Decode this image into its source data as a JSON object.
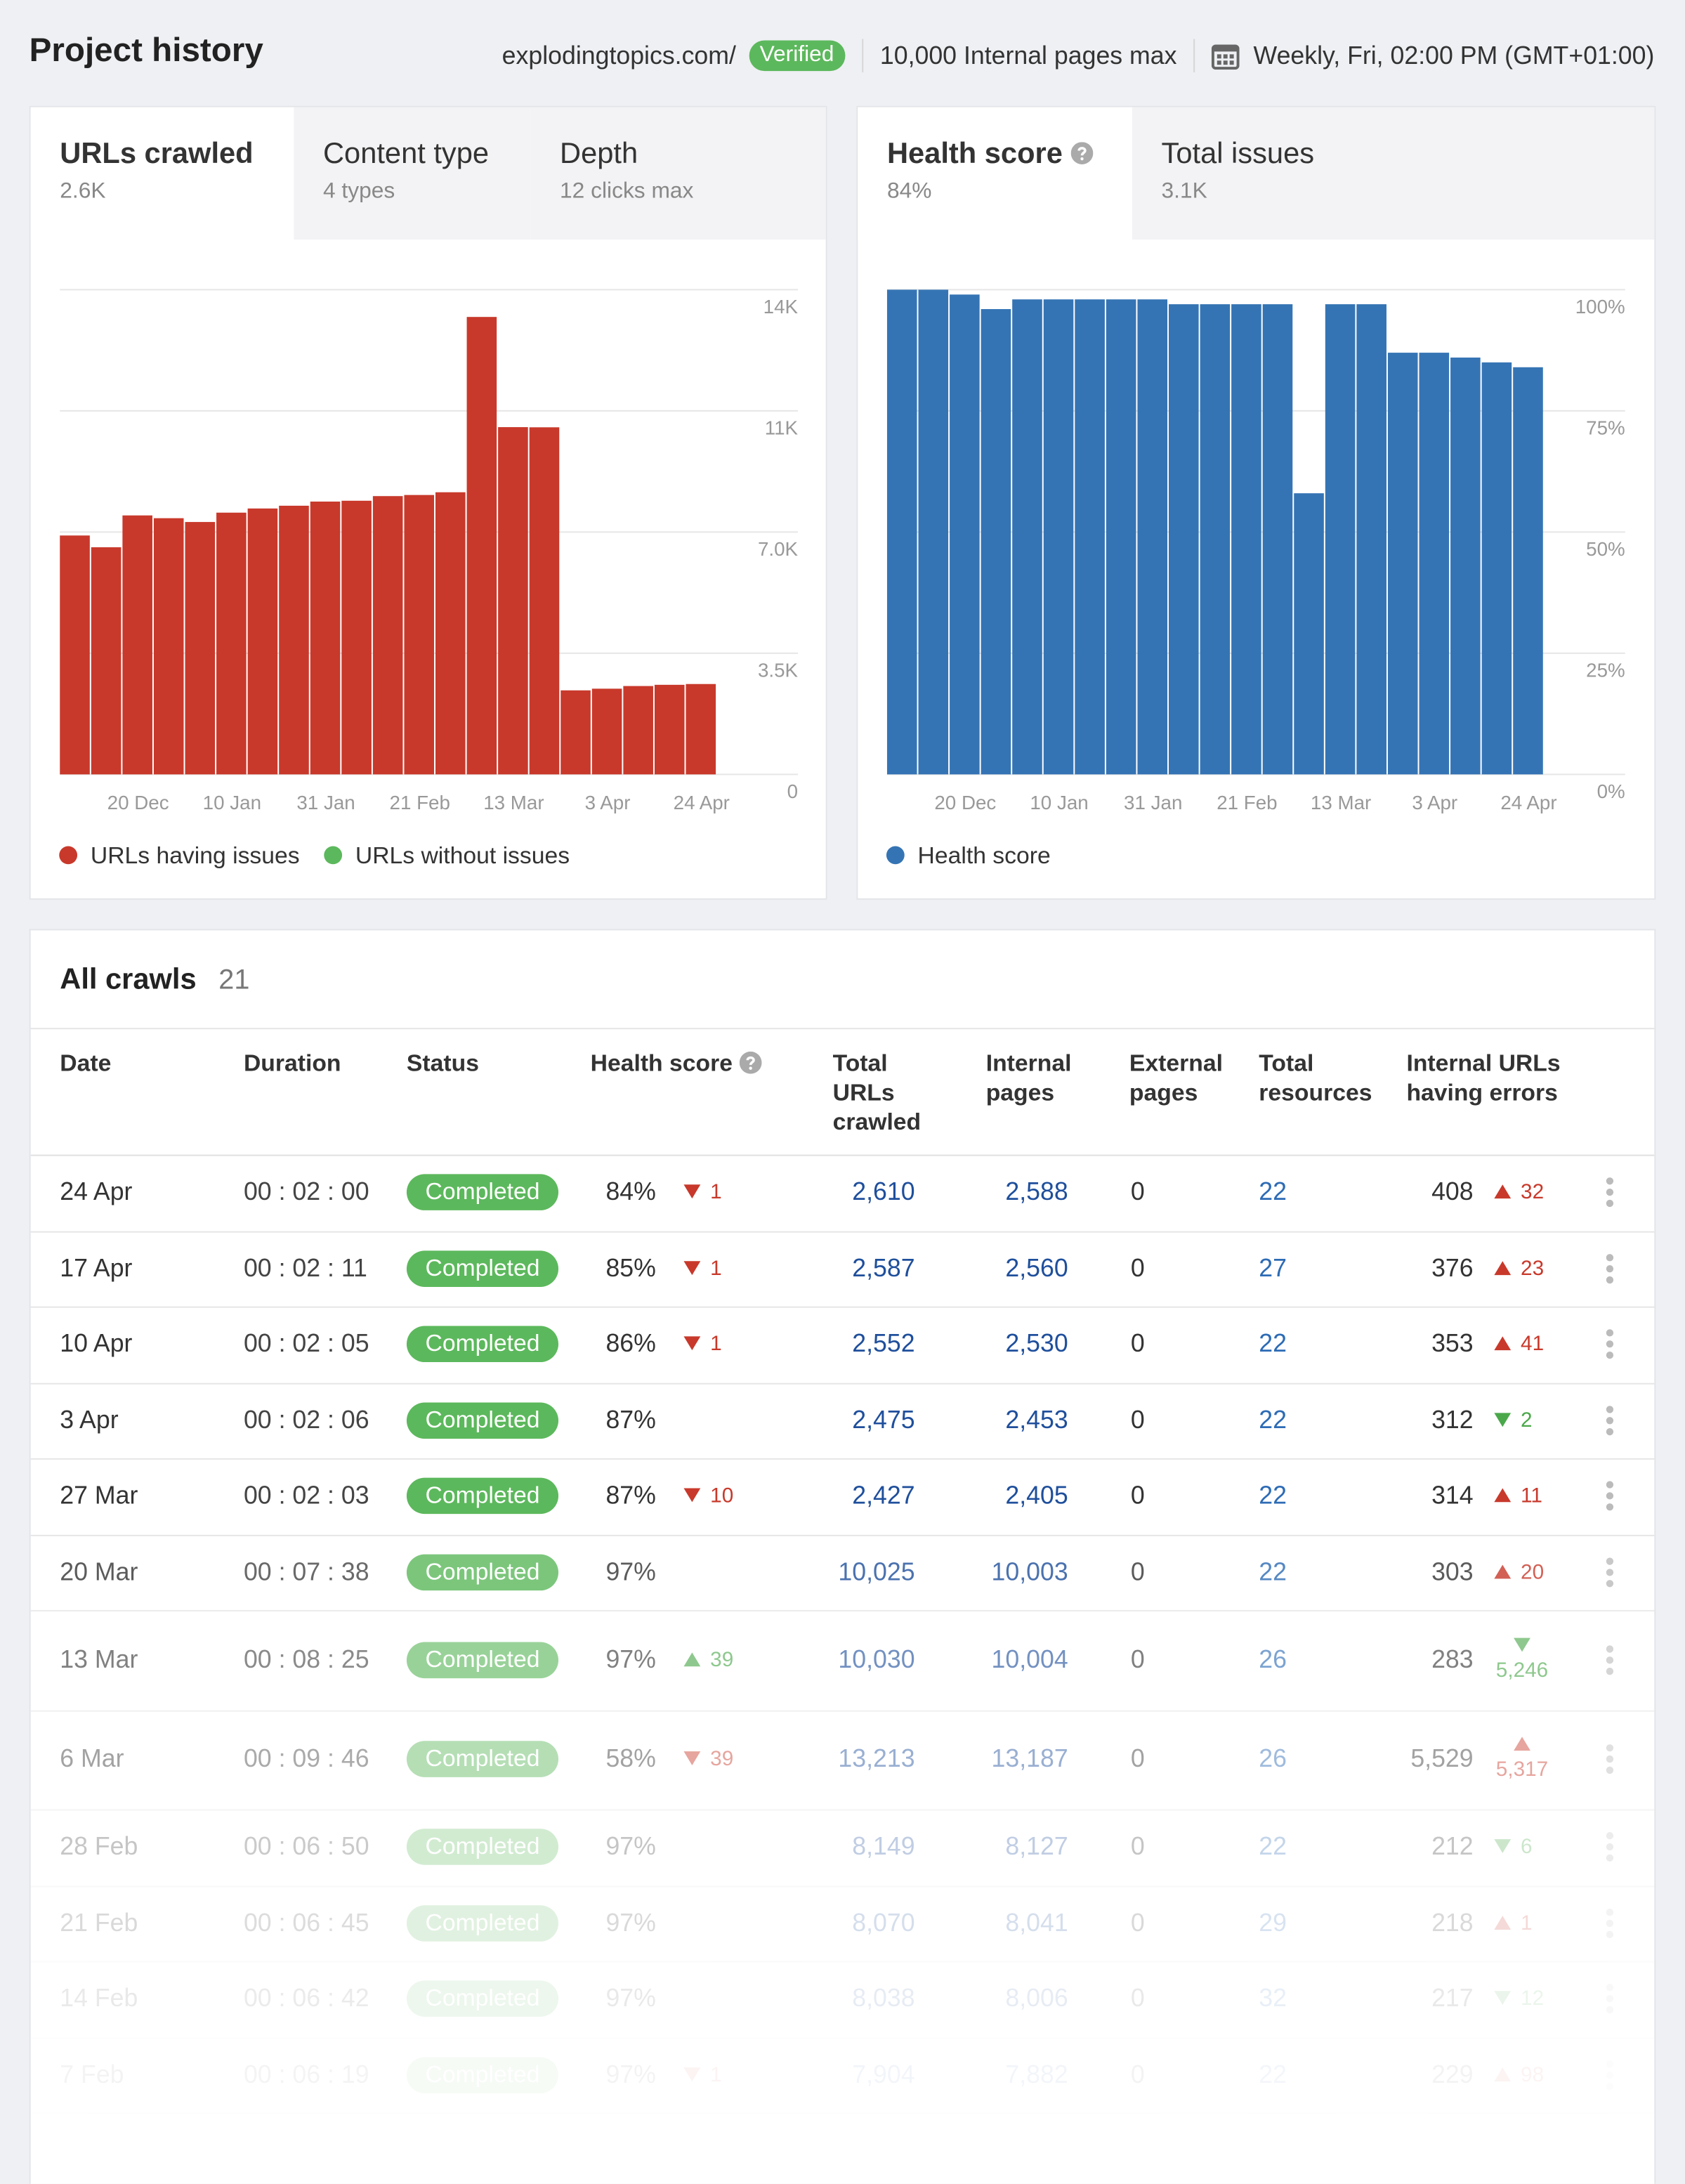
{
  "header": {
    "title": "Project history",
    "domain": "explodingtopics.com/",
    "badge": "Verified",
    "pages_limit": "10,000 Internal pages max",
    "schedule": "Weekly, Fri, 02:00 PM (GMT+01:00)"
  },
  "panels": [
    {
      "tabs": [
        {
          "label": "URLs crawled",
          "value": "2.6K"
        },
        {
          "label": "Content type",
          "value": "4 types"
        },
        {
          "label": "Depth",
          "value": "12 clicks max"
        }
      ]
    },
    {
      "tabs": [
        {
          "label": "Health score",
          "value": "84%"
        },
        {
          "label": "Total issues",
          "value": "3.1K"
        }
      ]
    }
  ],
  "chart_data": [
    {
      "type": "bar",
      "stacked": true,
      "categories": [
        null,
        null,
        "20 Dec",
        null,
        null,
        "10 Jan",
        null,
        null,
        "31 Jan",
        null,
        null,
        "21 Feb",
        null,
        null,
        "13 Mar",
        null,
        null,
        "3 Apr",
        null,
        null,
        "24 Apr"
      ],
      "series": [
        {
          "name": "URLs having issues",
          "color": "#c8392b",
          "values": [
            6900,
            6560,
            7480,
            7400,
            7290,
            7560,
            7680,
            7760,
            7880,
            7904,
            8038,
            8070,
            8149,
            13213,
            10030,
            10025,
            2427,
            2475,
            2552,
            2587,
            2610
          ]
        },
        {
          "name": "URLs without issues",
          "color": "#5cb85c",
          "values": [
            0,
            0,
            0,
            0,
            0,
            0,
            0,
            0,
            0,
            0,
            0,
            0,
            0,
            0,
            0,
            0,
            0,
            0,
            0,
            0,
            0
          ]
        }
      ],
      "ylim": [
        0,
        14000
      ],
      "yticks": [
        0,
        {
          "value": 3500,
          "label": "3.5K"
        },
        {
          "value": 7000,
          "label": "7.0K"
        },
        {
          "value": 10500,
          "label": "11K"
        },
        {
          "value": 14000,
          "label": "14K"
        }
      ],
      "grid": true
    },
    {
      "type": "bar",
      "stacked": true,
      "categories": [
        null,
        null,
        "20 Dec",
        null,
        null,
        "10 Jan",
        null,
        null,
        "31 Jan",
        null,
        null,
        "21 Feb",
        null,
        null,
        "13 Mar",
        null,
        null,
        "3 Apr",
        null,
        null,
        "24 Apr"
      ],
      "series": [
        {
          "name": "Health score",
          "color": "#3574b4",
          "values": [
            100,
            100,
            99,
            96,
            98,
            98,
            98,
            98,
            98,
            97,
            97,
            97,
            97,
            58,
            97,
            97,
            87,
            87,
            86,
            85,
            84
          ]
        }
      ],
      "ylim": [
        0,
        100
      ],
      "yticks": [
        {
          "value": 0,
          "label": "0%"
        },
        {
          "value": 25,
          "label": "25%"
        },
        {
          "value": 50,
          "label": "50%"
        },
        {
          "value": 75,
          "label": "75%"
        },
        {
          "value": 100,
          "label": "100%"
        }
      ],
      "grid": true
    }
  ],
  "table": {
    "title": "All crawls",
    "count": "21",
    "columns": [
      "Date",
      "Duration",
      "Status",
      "Health score",
      "Total URLs crawled",
      "Internal pages",
      "External pages",
      "Total resources",
      "Internal URLs having errors"
    ],
    "rows": [
      {
        "date": "24 Apr",
        "duration": "00 : 02 : 00",
        "status": "Completed",
        "health": "84%",
        "health_change": "1",
        "health_dir": "down",
        "total_urls": "2,610",
        "internal": "2,588",
        "external": "0",
        "resources": "22",
        "errors": "408",
        "errors_change": "32",
        "errors_dir": "up"
      },
      {
        "date": "17 Apr",
        "duration": "00 : 02 : 11",
        "status": "Completed",
        "health": "85%",
        "health_change": "1",
        "health_dir": "down",
        "total_urls": "2,587",
        "internal": "2,560",
        "external": "0",
        "resources": "27",
        "errors": "376",
        "errors_change": "23",
        "errors_dir": "up"
      },
      {
        "date": "10 Apr",
        "duration": "00 : 02 : 05",
        "status": "Completed",
        "health": "86%",
        "health_change": "1",
        "health_dir": "down",
        "total_urls": "2,552",
        "internal": "2,530",
        "external": "0",
        "resources": "22",
        "errors": "353",
        "errors_change": "41",
        "errors_dir": "up"
      },
      {
        "date": "3 Apr",
        "duration": "00 : 02 : 06",
        "status": "Completed",
        "health": "87%",
        "health_change": null,
        "health_dir": null,
        "total_urls": "2,475",
        "internal": "2,453",
        "external": "0",
        "resources": "22",
        "errors": "312",
        "errors_change": "2",
        "errors_dir": "down"
      },
      {
        "date": "27 Mar",
        "duration": "00 : 02 : 03",
        "status": "Completed",
        "health": "87%",
        "health_change": "10",
        "health_dir": "down",
        "total_urls": "2,427",
        "internal": "2,405",
        "external": "0",
        "resources": "22",
        "errors": "314",
        "errors_change": "11",
        "errors_dir": "up"
      },
      {
        "date": "20 Mar",
        "duration": "00 : 07 : 38",
        "status": "Completed",
        "health": "97%",
        "health_change": null,
        "health_dir": null,
        "total_urls": "10,025",
        "internal": "10,003",
        "external": "0",
        "resources": "22",
        "errors": "303",
        "errors_change": "20",
        "errors_dir": "up"
      },
      {
        "date": "13 Mar",
        "duration": "00 : 08 : 25",
        "status": "Completed",
        "health": "97%",
        "health_change": "39",
        "health_dir": "up",
        "total_urls": "10,030",
        "internal": "10,004",
        "external": "0",
        "resources": "26",
        "errors": "283",
        "errors_change": "5,246",
        "errors_dir": "down"
      },
      {
        "date": "6 Mar",
        "duration": "00 : 09 : 46",
        "status": "Completed",
        "health": "58%",
        "health_change": "39",
        "health_dir": "down",
        "total_urls": "13,213",
        "internal": "13,187",
        "external": "0",
        "resources": "26",
        "errors": "5,529",
        "errors_change": "5,317",
        "errors_dir": "up"
      },
      {
        "date": "28 Feb",
        "duration": "00 : 06 : 50",
        "status": "Completed",
        "health": "97%",
        "health_change": null,
        "health_dir": null,
        "total_urls": "8,149",
        "internal": "8,127",
        "external": "0",
        "resources": "22",
        "errors": "212",
        "errors_change": "6",
        "errors_dir": "down"
      },
      {
        "date": "21 Feb",
        "duration": "00 : 06 : 45",
        "status": "Completed",
        "health": "97%",
        "health_change": null,
        "health_dir": null,
        "total_urls": "8,070",
        "internal": "8,041",
        "external": "0",
        "resources": "29",
        "errors": "218",
        "errors_change": "1",
        "errors_dir": "up"
      },
      {
        "date": "14 Feb",
        "duration": "00 : 06 : 42",
        "status": "Completed",
        "health": "97%",
        "health_change": null,
        "health_dir": null,
        "total_urls": "8,038",
        "internal": "8,006",
        "external": "0",
        "resources": "32",
        "errors": "217",
        "errors_change": "12",
        "errors_dir": "down"
      },
      {
        "date": "7 Feb",
        "duration": "00 : 06 : 19",
        "status": "Completed",
        "health": "97%",
        "health_change": "1",
        "health_dir": "down",
        "total_urls": "7,904",
        "internal": "7,882",
        "external": "0",
        "resources": "22",
        "errors": "229",
        "errors_change": "98",
        "errors_dir": "up"
      }
    ]
  }
}
